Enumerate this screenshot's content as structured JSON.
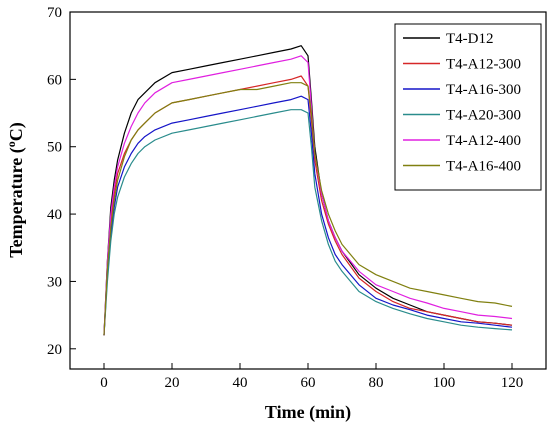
{
  "chart_data": {
    "type": "line",
    "title": "",
    "xlabel": "Time (min)",
    "ylabel_main": "Temperature (",
    "ylabel_sup": "o",
    "ylabel_tail": "C)",
    "xlim": [
      -10,
      130
    ],
    "ylim": [
      17,
      70
    ],
    "xticks": [
      0,
      20,
      40,
      60,
      80,
      100,
      120
    ],
    "yticks": [
      20,
      30,
      40,
      50,
      60,
      70
    ],
    "legend_position": "top-right",
    "grid": false,
    "series": [
      {
        "name": "T4-D12",
        "color": "#000000",
        "x": [
          0,
          1,
          2,
          3,
          4,
          6,
          8,
          10,
          12,
          15,
          20,
          25,
          30,
          35,
          40,
          45,
          50,
          55,
          58,
          60,
          61,
          62,
          64,
          66,
          68,
          70,
          75,
          80,
          85,
          90,
          95,
          100,
          105,
          110,
          115,
          120
        ],
        "y": [
          22,
          33,
          41,
          45,
          48,
          52,
          55,
          57,
          58,
          59.5,
          61,
          61.5,
          62,
          62.5,
          63,
          63.5,
          64,
          64.5,
          65,
          63.5,
          57,
          50,
          43,
          39,
          36.5,
          34.5,
          31,
          29,
          27.5,
          26.5,
          25.5,
          25,
          24.5,
          24,
          23.8,
          23.5
        ]
      },
      {
        "name": "T4-A12-300",
        "color": "#d62728",
        "x": [
          0,
          1,
          2,
          3,
          4,
          6,
          8,
          10,
          12,
          15,
          20,
          25,
          30,
          35,
          40,
          45,
          50,
          55,
          58,
          60,
          61,
          62,
          64,
          66,
          68,
          70,
          75,
          80,
          85,
          90,
          95,
          100,
          105,
          110,
          115,
          120
        ],
        "y": [
          22,
          32,
          39,
          43,
          46,
          49,
          51,
          52.5,
          53.5,
          55,
          56.5,
          57,
          57.5,
          58,
          58.5,
          59,
          59.5,
          60,
          60.5,
          59,
          54,
          48,
          42,
          38.5,
          36,
          34,
          30.5,
          28.5,
          27,
          26,
          25.5,
          25,
          24.5,
          24,
          23.8,
          23.5
        ]
      },
      {
        "name": "T4-A16-300",
        "color": "#1515c8",
        "x": [
          0,
          1,
          2,
          3,
          4,
          6,
          8,
          10,
          12,
          15,
          20,
          25,
          30,
          35,
          40,
          45,
          50,
          55,
          58,
          60,
          61,
          62,
          64,
          66,
          68,
          70,
          75,
          80,
          85,
          90,
          95,
          100,
          105,
          110,
          115,
          120
        ],
        "y": [
          22,
          31,
          37,
          41,
          44,
          47,
          49,
          50.5,
          51.5,
          52.5,
          53.5,
          54,
          54.5,
          55,
          55.5,
          56,
          56.5,
          57,
          57.5,
          57,
          52,
          46,
          40,
          36.5,
          34,
          32.5,
          29.5,
          27.5,
          26.5,
          25.8,
          25,
          24.5,
          24,
          23.8,
          23.5,
          23.2
        ]
      },
      {
        "name": "T4-A20-300",
        "color": "#2a8c8c",
        "x": [
          0,
          1,
          2,
          3,
          4,
          6,
          8,
          10,
          12,
          15,
          20,
          25,
          30,
          35,
          40,
          45,
          50,
          55,
          58,
          60,
          61,
          62,
          64,
          66,
          68,
          70,
          75,
          80,
          85,
          90,
          95,
          100,
          105,
          110,
          115,
          120
        ],
        "y": [
          22,
          30,
          36,
          40,
          42.5,
          45.5,
          47.5,
          49,
          50,
          51,
          52,
          52.5,
          53,
          53.5,
          54,
          54.5,
          55,
          55.5,
          55.5,
          55,
          50,
          44,
          39,
          35.5,
          33,
          31.5,
          28.5,
          27,
          26,
          25.2,
          24.5,
          24,
          23.5,
          23.2,
          23,
          22.8
        ]
      },
      {
        "name": "T4-A12-400",
        "color": "#e020e0",
        "x": [
          0,
          1,
          2,
          3,
          4,
          6,
          8,
          10,
          12,
          15,
          20,
          25,
          30,
          35,
          40,
          45,
          50,
          55,
          58,
          60,
          61,
          62,
          64,
          66,
          68,
          70,
          75,
          80,
          85,
          90,
          95,
          100,
          105,
          110,
          115,
          120
        ],
        "y": [
          22,
          33,
          40,
          44,
          47,
          50.5,
          53,
          55,
          56.5,
          58,
          59.5,
          60,
          60.5,
          61,
          61.5,
          62,
          62.5,
          63,
          63.5,
          62.5,
          56,
          49,
          43,
          39,
          36.5,
          34.5,
          31.5,
          29.5,
          28.5,
          27.5,
          26.8,
          26,
          25.5,
          25,
          24.8,
          24.5
        ]
      },
      {
        "name": "T4-A16-400",
        "color": "#808010",
        "x": [
          0,
          1,
          2,
          3,
          4,
          6,
          8,
          10,
          12,
          15,
          20,
          25,
          30,
          35,
          40,
          45,
          50,
          55,
          58,
          60,
          61,
          62,
          64,
          66,
          68,
          70,
          75,
          80,
          85,
          90,
          95,
          100,
          105,
          110,
          115,
          120
        ],
        "y": [
          22,
          32,
          38,
          42,
          45,
          48.5,
          51,
          52.5,
          53.5,
          55,
          56.5,
          57,
          57.5,
          58,
          58.5,
          58.5,
          59,
          59.5,
          59.5,
          59,
          55,
          49,
          43.5,
          40,
          37.5,
          35.5,
          32.5,
          31,
          30,
          29,
          28.5,
          28,
          27.5,
          27,
          26.8,
          26.3
        ]
      }
    ]
  }
}
